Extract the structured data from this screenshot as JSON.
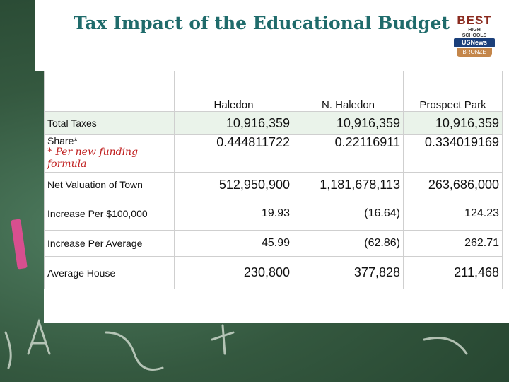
{
  "title": "Tax Impact of the Educational Budget",
  "badge": {
    "best": "BEST",
    "sub": "HIGH SCHOOLS",
    "brand": "USNews",
    "tier": "BRONZE"
  },
  "table": {
    "columns": [
      "Haledon",
      "N. Haledon",
      "Prospect Park"
    ],
    "rows": [
      {
        "label": "Total Taxes",
        "values": [
          "10,916,359",
          "10,916,359",
          "10,916,359"
        ]
      },
      {
        "label": "Share*",
        "note": "* Per new funding formula",
        "values": [
          "0.444811722",
          "0.22116911",
          "0.334019169"
        ]
      },
      {
        "label": "Net Valuation of Town",
        "values": [
          "512,950,900",
          "1,181,678,113",
          "263,686,000"
        ]
      },
      {
        "label": "Increase Per $100,000",
        "values": [
          "19.93",
          "(16.64)",
          "124.23"
        ]
      },
      {
        "label": "Increase Per Average",
        "values": [
          "45.99",
          "(62.86)",
          "262.71"
        ]
      },
      {
        "label": "Average House",
        "values": [
          "230,800",
          "377,828",
          "211,468"
        ]
      }
    ]
  },
  "colors": {
    "title": "#1f6b6b",
    "note": "#c02020",
    "chalkboard": "#34583f"
  }
}
